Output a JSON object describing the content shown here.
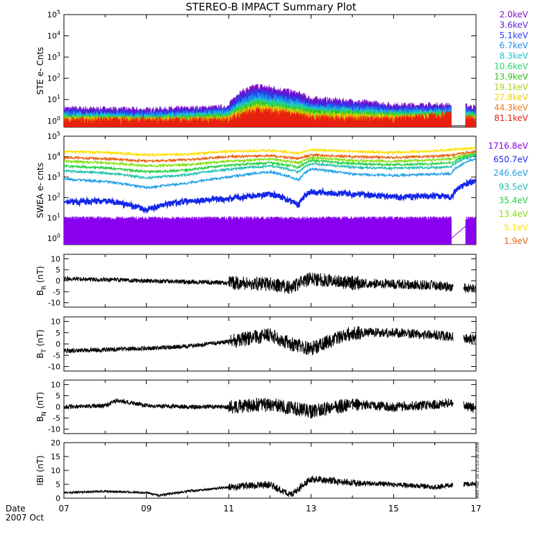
{
  "title": "STEREO-B IMPACT Summary Plot",
  "date_label": "Date",
  "date_sub": "2007 Oct",
  "timestamp": "Wed Mar 19 15:53:38 2008",
  "colors": {
    "ste": [
      "#7b10c8",
      "#5a18d8",
      "#2a40e8",
      "#1f8cf0",
      "#22c4d8",
      "#28d868",
      "#30c020",
      "#a8d810",
      "#f0d000",
      "#f07810",
      "#e82010"
    ],
    "swea": [
      "#8800ee",
      "#1428e8",
      "#20a0e8",
      "#20c0b0",
      "#20d040",
      "#80e010",
      "#ffe000",
      "#e86010"
    ]
  },
  "chart_data": [
    {
      "type": "line",
      "panel": "ste",
      "ylabel": "STE e- Cnts",
      "yscale": "log",
      "ylim": [
        0.5,
        100000
      ],
      "ytick_labels": [
        "10^0",
        "10^1",
        "10^2",
        "10^3",
        "10^4",
        "10^5"
      ],
      "series": [
        {
          "name": "2.0keV",
          "x": [
            "2007-10-07",
            "2007-10-09",
            "2007-10-11",
            "2007-10-11.7",
            "2007-10-13",
            "2007-10-15",
            "2007-10-16.4",
            "2007-10-17"
          ],
          "values": [
            3.5,
            3,
            4,
            40,
            10,
            5,
            5,
            4
          ]
        },
        {
          "name": "3.6keV",
          "x": [
            "2007-10-07",
            "2007-10-09",
            "2007-10-11",
            "2007-10-11.7",
            "2007-10-13",
            "2007-10-15",
            "2007-10-16.4",
            "2007-10-17"
          ],
          "values": [
            3,
            2.5,
            3.5,
            30,
            8,
            4,
            4,
            3.5
          ]
        },
        {
          "name": "5.1keV",
          "x": [
            "2007-10-07",
            "2007-10-09",
            "2007-10-11",
            "2007-10-11.7",
            "2007-10-13",
            "2007-10-15",
            "2007-10-16.4",
            "2007-10-17"
          ],
          "values": [
            2.5,
            2.2,
            3,
            22,
            6,
            3.5,
            3.5,
            3
          ]
        },
        {
          "name": "6.7keV",
          "x": [
            "2007-10-07",
            "2007-10-09",
            "2007-10-11",
            "2007-10-11.7",
            "2007-10-13",
            "2007-10-15",
            "2007-10-16.4",
            "2007-10-17"
          ],
          "values": [
            2,
            1.8,
            2.5,
            15,
            4.5,
            2.8,
            3,
            2.5
          ]
        },
        {
          "name": "8.3keV",
          "x": [
            "2007-10-07",
            "2007-10-09",
            "2007-10-11",
            "2007-10-11.7",
            "2007-10-13",
            "2007-10-15",
            "2007-10-16.4",
            "2007-10-17"
          ],
          "values": [
            1.7,
            1.5,
            2,
            10,
            3.5,
            2.2,
            2.5,
            2
          ]
        },
        {
          "name": "10.6keV",
          "x": [
            "2007-10-07",
            "2007-10-09",
            "2007-10-11",
            "2007-10-11.7",
            "2007-10-13",
            "2007-10-15",
            "2007-10-16.4",
            "2007-10-17"
          ],
          "values": [
            1.5,
            1.3,
            1.7,
            8,
            3,
            2,
            2,
            1.8
          ]
        },
        {
          "name": "13.9keV",
          "x": [
            "2007-10-07",
            "2007-10-09",
            "2007-10-11",
            "2007-10-11.7",
            "2007-10-13",
            "2007-10-15",
            "2007-10-16.4",
            "2007-10-17"
          ],
          "values": [
            1.3,
            1.2,
            1.5,
            6,
            2.5,
            1.7,
            1.8,
            1.5
          ]
        },
        {
          "name": "19.1keV",
          "x": [
            "2007-10-07",
            "2007-10-09",
            "2007-10-11",
            "2007-10-11.7",
            "2007-10-13",
            "2007-10-15",
            "2007-10-16.4",
            "2007-10-17"
          ],
          "values": [
            1.2,
            1.1,
            1.3,
            5,
            2,
            1.5,
            1.6,
            1.3
          ]
        },
        {
          "name": "27.8keV",
          "x": [
            "2007-10-07",
            "2007-10-09",
            "2007-10-11",
            "2007-10-11.7",
            "2007-10-13",
            "2007-10-15",
            "2007-10-16.4",
            "2007-10-17"
          ],
          "values": [
            1.1,
            1,
            1.2,
            4,
            1.7,
            1.3,
            1.4,
            1.2
          ]
        },
        {
          "name": "44.3keV",
          "x": [
            "2007-10-07",
            "2007-10-09",
            "2007-10-11",
            "2007-10-11.7",
            "2007-10-13",
            "2007-10-15",
            "2007-10-16.4",
            "2007-10-17"
          ],
          "values": [
            1,
            1,
            1.1,
            3.5,
            1.5,
            1.2,
            1.3,
            1.1
          ]
        },
        {
          "name": "81.1keV",
          "x": [
            "2007-10-07",
            "2007-10-09",
            "2007-10-11",
            "2007-10-11.7",
            "2007-10-13",
            "2007-10-15",
            "2007-10-16.4",
            "2007-10-17"
          ],
          "values": [
            1,
            1,
            1,
            3,
            1.3,
            1.1,
            2,
            1
          ]
        }
      ]
    },
    {
      "type": "line",
      "panel": "swea",
      "ylabel": "SWEA e- cnts",
      "yscale": "log",
      "ylim": [
        0.5,
        100000
      ],
      "ytick_labels": [
        "10^0",
        "10^1",
        "10^2",
        "10^3",
        "10^4",
        "10^5"
      ],
      "series": [
        {
          "name": "1716.8eV",
          "x": [
            "2007-10-07",
            "2007-10-17"
          ],
          "values": [
            10,
            10
          ]
        },
        {
          "name": "650.7eV",
          "x": [
            "2007-10-07",
            "2007-10-08",
            "2007-10-09",
            "2007-10-10",
            "2007-10-11",
            "2007-10-12",
            "2007-10-12.7",
            "2007-10-13",
            "2007-10-14",
            "2007-10-15",
            "2007-10-16",
            "2007-10-16.4",
            "2007-10-17"
          ],
          "values": [
            60,
            70,
            25,
            70,
            90,
            150,
            40,
            200,
            150,
            110,
            120,
            110,
            700
          ]
        },
        {
          "name": "246.6eV",
          "x": [
            "2007-10-07",
            "2007-10-08",
            "2007-10-09",
            "2007-10-10",
            "2007-10-11",
            "2007-10-12",
            "2007-10-12.7",
            "2007-10-13",
            "2007-10-14",
            "2007-10-15",
            "2007-10-16",
            "2007-10-16.4",
            "2007-10-17"
          ],
          "values": [
            800,
            600,
            300,
            500,
            1000,
            1800,
            700,
            2500,
            1400,
            1200,
            1400,
            1500,
            8000
          ]
        },
        {
          "name": "93.5eV",
          "x": [
            "2007-10-07",
            "2007-10-08",
            "2007-10-09",
            "2007-10-10",
            "2007-10-11",
            "2007-10-12",
            "2007-10-12.7",
            "2007-10-13",
            "2007-10-14",
            "2007-10-15",
            "2007-10-16",
            "2007-10-16.4",
            "2007-10-17"
          ],
          "values": [
            2000,
            1600,
            900,
            1300,
            2400,
            3500,
            1800,
            4500,
            3000,
            2700,
            3000,
            3200,
            12000
          ]
        },
        {
          "name": "35.4eV",
          "x": [
            "2007-10-07",
            "2007-10-08",
            "2007-10-09",
            "2007-10-10",
            "2007-10-11",
            "2007-10-12",
            "2007-10-12.7",
            "2007-10-13",
            "2007-10-14",
            "2007-10-15",
            "2007-10-16",
            "2007-10-16.4",
            "2007-10-17"
          ],
          "values": [
            3500,
            2800,
            1800,
            2200,
            3800,
            5000,
            3000,
            6500,
            4500,
            4000,
            4500,
            5000,
            14000
          ]
        },
        {
          "name": "13.4eV",
          "x": [
            "2007-10-07",
            "2007-10-08",
            "2007-10-09",
            "2007-10-10",
            "2007-10-11",
            "2007-10-12",
            "2007-10-12.7",
            "2007-10-13",
            "2007-10-14",
            "2007-10-15",
            "2007-10-16",
            "2007-10-16.4",
            "2007-10-17"
          ],
          "values": [
            6000,
            5000,
            3500,
            4000,
            6000,
            7500,
            5000,
            9000,
            6500,
            6000,
            7000,
            8000,
            16000
          ]
        },
        {
          "name": "5.1eV",
          "x": [
            "2007-10-07",
            "2007-10-08",
            "2007-10-09",
            "2007-10-10",
            "2007-10-11",
            "2007-10-12",
            "2007-10-12.7",
            "2007-10-13",
            "2007-10-14",
            "2007-10-15",
            "2007-10-16",
            "2007-10-16.4",
            "2007-10-17"
          ],
          "values": [
            18000,
            16000,
            12000,
            13000,
            18000,
            20000,
            15000,
            22000,
            18000,
            16000,
            19000,
            22000,
            26000
          ]
        },
        {
          "name": "1.9eV",
          "x": [
            "2007-10-07",
            "2007-10-08",
            "2007-10-09",
            "2007-10-10",
            "2007-10-11",
            "2007-10-12",
            "2007-10-12.7",
            "2007-10-13",
            "2007-10-14",
            "2007-10-15",
            "2007-10-16",
            "2007-10-16.4",
            "2007-10-17"
          ],
          "values": [
            9000,
            8000,
            6000,
            7000,
            10000,
            11000,
            8000,
            12000,
            10000,
            9000,
            10500,
            12000,
            18000
          ]
        }
      ]
    },
    {
      "type": "line",
      "panel": "br",
      "ylabel": "B",
      "ylabel_sub": "R",
      "ylabel_unit": "(nT)",
      "ylim": [
        -12,
        12
      ],
      "ytick_labels": [
        "10",
        "5",
        "0",
        "-5",
        "-10"
      ],
      "series": [
        {
          "x": [
            "2007-10-07",
            "2007-10-08",
            "2007-10-09",
            "2007-10-10",
            "2007-10-11",
            "2007-10-12",
            "2007-10-12.5",
            "2007-10-13",
            "2007-10-14",
            "2007-10-15",
            "2007-10-16",
            "2007-10-16.5",
            "2007-10-17"
          ],
          "values": [
            1,
            0.5,
            0,
            -0.5,
            -1,
            -1.5,
            -3,
            1,
            -1,
            -1.5,
            -2,
            -3,
            -4
          ]
        }
      ]
    },
    {
      "type": "line",
      "panel": "bt",
      "ylabel": "B",
      "ylabel_sub": "T",
      "ylabel_unit": "(nT)",
      "ylim": [
        -12,
        12
      ],
      "ytick_labels": [
        "10",
        "5",
        "0",
        "-5",
        "-10"
      ],
      "series": [
        {
          "x": [
            "2007-10-07",
            "2007-10-08",
            "2007-10-09",
            "2007-10-10",
            "2007-10-11",
            "2007-10-12",
            "2007-10-12.5",
            "2007-10-13",
            "2007-10-14",
            "2007-10-15",
            "2007-10-16",
            "2007-10-16.5",
            "2007-10-17"
          ],
          "values": [
            -3,
            -2.5,
            -2,
            -1,
            1,
            4,
            0,
            -2,
            5,
            5,
            4,
            3,
            2
          ]
        }
      ]
    },
    {
      "type": "line",
      "panel": "bn",
      "ylabel": "B",
      "ylabel_sub": "N",
      "ylabel_unit": "(nT)",
      "ylim": [
        -12,
        12
      ],
      "ytick_labels": [
        "10",
        "5",
        "0",
        "-5",
        "-10"
      ],
      "series": [
        {
          "x": [
            "2007-10-07",
            "2007-10-08",
            "2007-10-08.3",
            "2007-10-09",
            "2007-10-10",
            "2007-10-11",
            "2007-10-12",
            "2007-10-13",
            "2007-10-14",
            "2007-10-15",
            "2007-10-16",
            "2007-10-16.5",
            "2007-10-17"
          ],
          "values": [
            0,
            0.5,
            3,
            0.5,
            0,
            0,
            1,
            -2,
            1,
            0,
            1,
            2,
            -1
          ]
        }
      ]
    },
    {
      "type": "line",
      "panel": "btot",
      "ylabel": "IBI",
      "ylabel_unit": "(nT)",
      "ylim": [
        0,
        20
      ],
      "ytick_labels": [
        "20",
        "15",
        "10",
        "5",
        "0"
      ],
      "series": [
        {
          "x": [
            "2007-10-07",
            "2007-10-08",
            "2007-10-09",
            "2007-10-09.3",
            "2007-10-10",
            "2007-10-11",
            "2007-10-12",
            "2007-10-12.5",
            "2007-10-13",
            "2007-10-14",
            "2007-10-15",
            "2007-10-16",
            "2007-10-16.5",
            "2007-10-17"
          ],
          "values": [
            2,
            2.5,
            2,
            1,
            2.5,
            4,
            5,
            1,
            7,
            5.5,
            5,
            4,
            5,
            5
          ]
        }
      ]
    },
    {
      "type": "axis",
      "xlabel": "",
      "xlim": [
        "2007-10-07",
        "2007-10-17"
      ],
      "xtick_labels": [
        "07",
        "09",
        "11",
        "13",
        "15",
        "17"
      ]
    }
  ]
}
